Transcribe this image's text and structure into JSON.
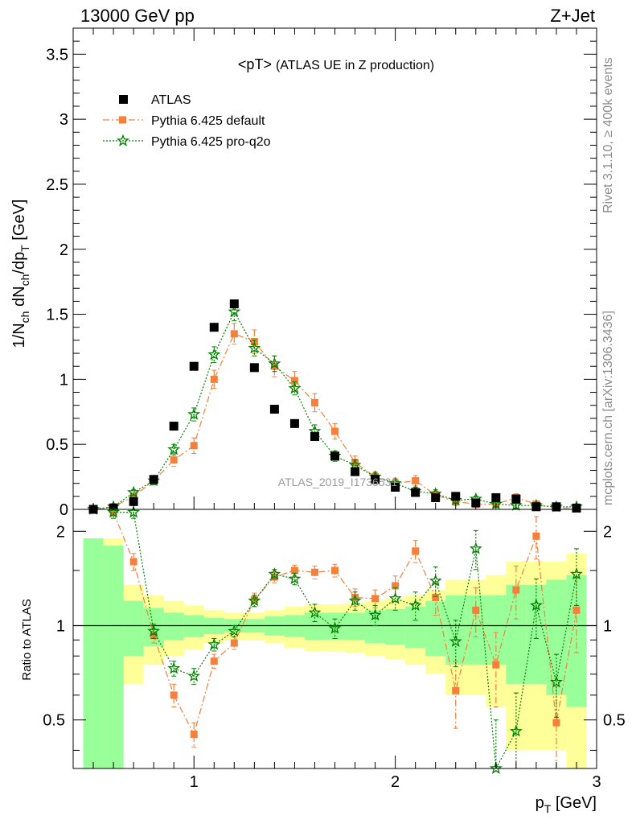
{
  "header": {
    "left": "13000 GeV pp",
    "right": "Z+Jet"
  },
  "title_main": "<pT>",
  "title_sub": "(ATLAS UE in Z production)",
  "watermark": "ATLAS_2019_I1736531",
  "side_text_top": "Rivet 3.1.10, ≥ 400k events",
  "side_text_bottom": "mcplots.cern.ch [arXiv:1306.3436]",
  "ylabel_main": "1/N_ch dN_ch/dp_T [GeV]",
  "ylabel_ratio": "Ratio to ATLAS",
  "xlabel": "p_T [GeV]",
  "ticks": {
    "main_y": [
      "0",
      "0.5",
      "1",
      "1.5",
      "2",
      "2.5",
      "3",
      "3.5"
    ],
    "ratio_y": [
      "0.5",
      "1",
      "2"
    ],
    "x": [
      "1",
      "2",
      "3"
    ]
  },
  "legend": {
    "atlas": "ATLAS",
    "default": "Pythia 6.425 default",
    "proq2o": "Pythia 6.425 pro-q2o"
  },
  "colors": {
    "atlas": "#000000",
    "default": "#f5803c",
    "proq2o": "#008000",
    "band_green": "#99ff99",
    "band_yellow": "#ffff99"
  },
  "chart_data": {
    "type": "scatter",
    "xlim": [
      0.4,
      3.0
    ],
    "ylim": [
      0,
      3.7
    ],
    "ratio_ylim": [
      0.35,
      2.35
    ],
    "ratio_log": true,
    "x": [
      0.5,
      0.6,
      0.7,
      0.8,
      0.9,
      1.0,
      1.1,
      1.2,
      1.3,
      1.4,
      1.5,
      1.6,
      1.7,
      1.8,
      1.9,
      2.0,
      2.1,
      2.2,
      2.3,
      2.4,
      2.5,
      2.6,
      2.7,
      2.8,
      2.9
    ],
    "series": [
      {
        "name": "ATLAS",
        "values": [
          0.0,
          0.01,
          0.06,
          0.23,
          0.64,
          1.1,
          1.4,
          1.58,
          1.09,
          0.77,
          0.66,
          0.56,
          0.41,
          0.29,
          0.23,
          0.17,
          0.13,
          0.09,
          0.1,
          0.05,
          0.09,
          0.08,
          0.02,
          0.02,
          0.01
        ]
      },
      {
        "name": "Pythia 6.425 default",
        "values": [
          0.0,
          0.02,
          0.1,
          0.22,
          0.38,
          0.49,
          1.0,
          1.35,
          1.29,
          1.1,
          0.99,
          0.82,
          0.6,
          0.36,
          0.25,
          0.2,
          0.22,
          0.11,
          0.06,
          0.04,
          0.04,
          0.09,
          0.04,
          0.01,
          0.01
        ],
        "errors": [
          0.0,
          0.01,
          0.02,
          0.03,
          0.05,
          0.06,
          0.07,
          0.08,
          0.09,
          0.08,
          0.07,
          0.07,
          0.06,
          0.05,
          0.04,
          0.04,
          0.04,
          0.03,
          0.03,
          0.02,
          0.02,
          0.03,
          0.02,
          0.01,
          0.01
        ]
      },
      {
        "name": "Pythia 6.425 pro-q2o",
        "values": [
          0.0,
          0.02,
          0.13,
          0.22,
          0.46,
          0.73,
          1.19,
          1.52,
          1.24,
          1.12,
          0.93,
          0.6,
          0.41,
          0.34,
          0.25,
          0.2,
          0.14,
          0.12,
          0.07,
          0.08,
          0.04,
          0.03,
          0.03,
          0.02,
          0.02
        ],
        "errors": [
          0.0,
          0.01,
          0.02,
          0.03,
          0.04,
          0.05,
          0.06,
          0.07,
          0.06,
          0.06,
          0.05,
          0.05,
          0.04,
          0.04,
          0.03,
          0.03,
          0.03,
          0.03,
          0.02,
          0.02,
          0.02,
          0.02,
          0.02,
          0.01,
          0.01
        ]
      }
    ],
    "ratio_series": [
      {
        "name": "Pythia 6.425 default",
        "values": [
          null,
          2.3,
          1.6,
          0.93,
          0.6,
          0.45,
          0.77,
          0.88,
          1.21,
          1.43,
          1.5,
          1.48,
          1.5,
          1.23,
          1.22,
          1.34,
          1.73,
          1.23,
          0.62,
          1.12,
          0.75,
          1.3,
          1.93,
          0.49,
          1.12
        ],
        "errors": [
          0,
          0.1,
          0.1,
          0.05,
          0.05,
          0.04,
          0.04,
          0.04,
          0.06,
          0.06,
          0.06,
          0.07,
          0.07,
          0.08,
          0.08,
          0.1,
          0.14,
          0.15,
          0.15,
          0.2,
          0.2,
          0.25,
          0.3,
          0.15,
          0.3
        ]
      },
      {
        "name": "Pythia 6.425 pro-q2o",
        "values": [
          null,
          2.3,
          2.3,
          0.96,
          0.73,
          0.69,
          0.87,
          0.96,
          1.2,
          1.46,
          1.41,
          1.1,
          0.98,
          1.2,
          1.08,
          1.22,
          1.16,
          1.39,
          0.89,
          1.76,
          0.3,
          0.46,
          1.16,
          0.66,
          1.46
        ],
        "errors": [
          0,
          0.1,
          0.1,
          0.05,
          0.04,
          0.04,
          0.04,
          0.04,
          0.05,
          0.05,
          0.06,
          0.07,
          0.07,
          0.08,
          0.08,
          0.1,
          0.12,
          0.15,
          0.15,
          0.25,
          0.2,
          0.15,
          0.25,
          0.15,
          0.3
        ]
      }
    ],
    "bands": {
      "yellow_half_width": [
        0.9,
        0.9,
        0.35,
        0.25,
        0.2,
        0.16,
        0.12,
        0.1,
        0.1,
        0.12,
        0.15,
        0.17,
        0.17,
        0.18,
        0.2,
        0.22,
        0.25,
        0.3,
        0.4,
        0.4,
        0.45,
        0.6,
        0.6,
        0.6,
        0.7
      ],
      "green_half_width": [
        0.9,
        0.8,
        0.2,
        0.14,
        0.1,
        0.08,
        0.06,
        0.05,
        0.05,
        0.07,
        0.08,
        0.1,
        0.1,
        0.1,
        0.12,
        0.13,
        0.15,
        0.2,
        0.25,
        0.25,
        0.25,
        0.35,
        0.35,
        0.4,
        0.45
      ]
    }
  }
}
